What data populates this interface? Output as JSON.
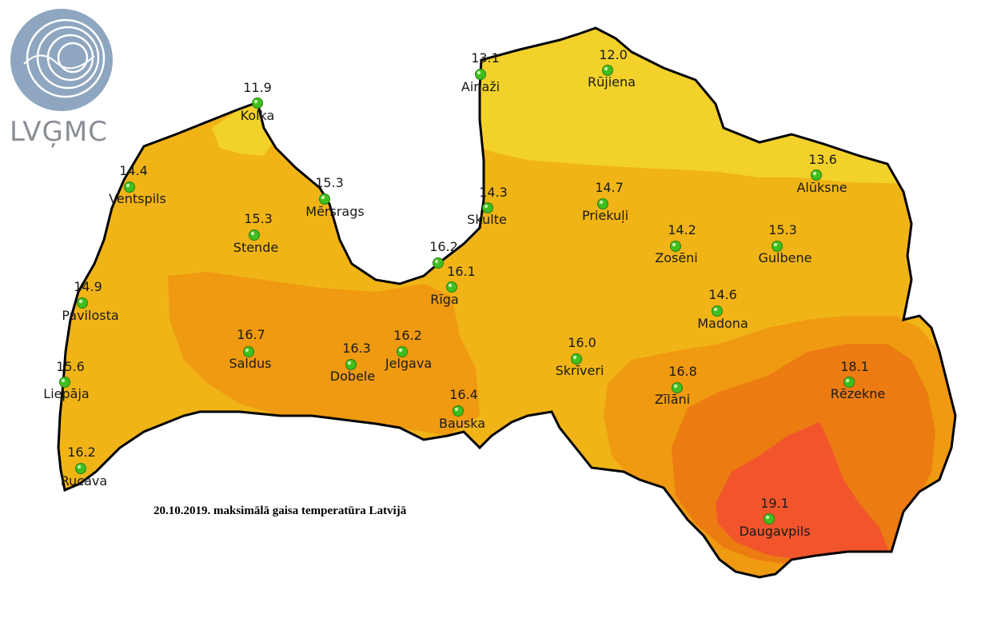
{
  "logo": {
    "text": "LVĢMC",
    "icon": "concentric-rings-logo"
  },
  "caption": "20.10.2019. maksimālā gaisa temperatūra Latvijā",
  "colors": {
    "zone_13": "#f2d12b",
    "zone_15": "#f0b416",
    "zone_16": "#ef9a10",
    "zone_17": "#ec7b12",
    "zone_19": "#f2552c",
    "border": "#000000",
    "station": "#3fbf1f"
  },
  "stations": [
    {
      "id": "kolka",
      "name": "Kolka",
      "value": "11.9"
    },
    {
      "id": "ventspils",
      "name": "Ventspils",
      "value": "14.4"
    },
    {
      "id": "mersrags",
      "name": "Mērsrags",
      "value": "15.3"
    },
    {
      "id": "stende",
      "name": "Stende",
      "value": "15.3"
    },
    {
      "id": "pavilosta",
      "name": "Pavilosta",
      "value": "14.9"
    },
    {
      "id": "liepaja",
      "name": "Liepāja",
      "value": "15.6"
    },
    {
      "id": "rucava",
      "name": "Rucava",
      "value": "16.2"
    },
    {
      "id": "saldus",
      "name": "Saldus",
      "value": "16.7"
    },
    {
      "id": "dobele",
      "name": "Dobele",
      "value": "16.3"
    },
    {
      "id": "jelgava",
      "name": "Jelgava",
      "value": "16.2"
    },
    {
      "id": "bauska",
      "name": "Bauska",
      "value": "16.4"
    },
    {
      "id": "riga-coast",
      "name": "",
      "value": "16.2"
    },
    {
      "id": "riga",
      "name": "Rīga",
      "value": "16.1"
    },
    {
      "id": "ainazi",
      "name": "Ainaži",
      "value": "13.1"
    },
    {
      "id": "rujiena",
      "name": "Rūjiena",
      "value": "12.0"
    },
    {
      "id": "skulte",
      "name": "Skulte",
      "value": "14.3"
    },
    {
      "id": "priekuli",
      "name": "Priekuļi",
      "value": "14.7"
    },
    {
      "id": "aluksne",
      "name": "Alūksne",
      "value": "13.6"
    },
    {
      "id": "zoseni",
      "name": "Zosēni",
      "value": "14.2"
    },
    {
      "id": "gulbene",
      "name": "Gulbene",
      "value": "15.3"
    },
    {
      "id": "madona",
      "name": "Madona",
      "value": "14.6"
    },
    {
      "id": "skriveri",
      "name": "Skrīveri",
      "value": "16.0"
    },
    {
      "id": "zilani",
      "name": "Zīlāni",
      "value": "16.8"
    },
    {
      "id": "rezekne",
      "name": "Rēzekne",
      "value": "18.1"
    },
    {
      "id": "daugavpils",
      "name": "Daugavpils",
      "value": "19.1"
    }
  ]
}
